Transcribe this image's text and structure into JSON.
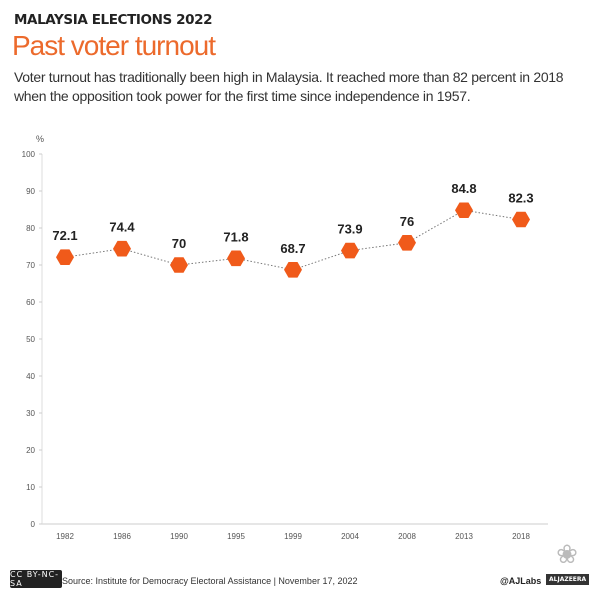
{
  "header": {
    "kicker": "MALAYSIA ELECTIONS 2022",
    "title": "Past voter turnout",
    "subtitle": "Voter turnout has traditionally been high in Malaysia. It reached more than 82 percent in 2018 when the opposition took power for the first time since independence in 1957."
  },
  "chart_data": {
    "type": "line",
    "title": "Past voter turnout",
    "ylabel": "%",
    "xlabel": "",
    "ylim": [
      0,
      100
    ],
    "yticks": [
      0,
      10,
      20,
      30,
      40,
      50,
      60,
      70,
      80,
      90,
      100
    ],
    "categories": [
      "1982",
      "1986",
      "1990",
      "1995",
      "1999",
      "2004",
      "2008",
      "2013",
      "2018"
    ],
    "values": [
      72.1,
      74.4,
      70,
      71.8,
      68.7,
      73.9,
      76,
      84.8,
      82.3
    ],
    "labels": [
      "72.1",
      "74.4",
      "70",
      "71.8",
      "68.7",
      "73.9",
      "76",
      "84.8",
      "82.3"
    ],
    "marker": "hexagon",
    "line_style": "dotted",
    "grid": false,
    "color": "#f05a1a"
  },
  "footer": {
    "license": "CC BY-NC-SA",
    "source": "Source: Institute for Democracy Electoral Assistance  |  November 17, 2022",
    "handle": "@AJLabs",
    "brand": "ALJAZEERA"
  }
}
